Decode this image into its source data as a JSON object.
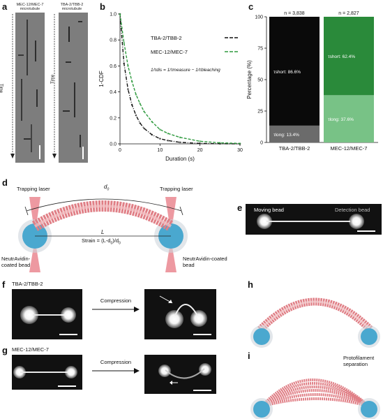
{
  "panels": {
    "a": {
      "label": "a",
      "kymo1_title": "MEC-12/MEC-7 microtubule",
      "kymo2_title": "TBA-2/TBB-2 microtubule",
      "time_label": "Time"
    },
    "b": {
      "label": "b"
    },
    "c": {
      "label": "c"
    },
    "d": {
      "label": "d",
      "trap_left": "Trapping laser",
      "trap_right": "Trapping laser",
      "d0": "d",
      "d0_sub": "0",
      "L": "L",
      "strain": "Strain = (L-d",
      "strain_sub": "0",
      "strain_tail": ")/d",
      "strain_sub2": "0",
      "bead_left": "NeutrAvidin-coated bead",
      "bead_right": "NeutrAvidin-coated bead",
      "colors": {
        "bead": "#4aa8cf",
        "lattice": "#e07f86",
        "laser": "#e8808a"
      }
    },
    "e": {
      "label": "e",
      "moving": "Moving bead",
      "detection": "Detection bead"
    },
    "f": {
      "label": "f",
      "title": "TBA-2/TBB-2",
      "arrow": "Compression"
    },
    "g": {
      "label": "g",
      "title": "MEC-12/MEC-7",
      "arrow": "Compression"
    },
    "h": {
      "label": "h"
    },
    "i": {
      "label": "i",
      "note": "Protofilament separation"
    }
  },
  "chart_data": [
    {
      "id": "b",
      "type": "line",
      "xlabel": "Duration (s)",
      "ylabel": "1-CDF",
      "xlim": [
        0,
        30
      ],
      "ylim": [
        0,
        1.0
      ],
      "xticks": [
        0,
        10,
        20,
        30
      ],
      "yticks": [
        0,
        0.2,
        0.4,
        0.6,
        0.8,
        1.0
      ],
      "equation": "1/τdis = 1/τmeasure − 1/τbleaching",
      "series": [
        {
          "name": "TBA-2/TBB-2",
          "color": "#111111",
          "x": [
            0,
            1,
            2,
            3,
            4,
            5,
            6,
            8,
            10,
            12,
            15,
            20,
            25,
            30
          ],
          "y": [
            1.0,
            0.62,
            0.42,
            0.3,
            0.22,
            0.16,
            0.12,
            0.07,
            0.04,
            0.025,
            0.012,
            0.004,
            0.001,
            0.0
          ]
        },
        {
          "name": "MEC-12/MEC-7",
          "color": "#2e9a3e",
          "x": [
            0,
            1,
            2,
            3,
            4,
            5,
            6,
            8,
            10,
            12,
            15,
            20,
            25,
            30
          ],
          "y": [
            1.0,
            0.78,
            0.6,
            0.48,
            0.38,
            0.31,
            0.25,
            0.17,
            0.11,
            0.08,
            0.05,
            0.02,
            0.008,
            0.003
          ]
        }
      ]
    },
    {
      "id": "c",
      "type": "bar",
      "stacked": true,
      "ylabel": "Percentage (%)",
      "ylim": [
        0,
        100
      ],
      "yticks": [
        0,
        25,
        50,
        75,
        100
      ],
      "categories": [
        "TBA-2/TBB-2",
        "MEC-12/MEC-7"
      ],
      "n_labels": [
        "n = 3,838",
        "n = 2,827"
      ],
      "series": [
        {
          "name": "τlong",
          "values": [
            13.4,
            37.6
          ],
          "colors": [
            "#6b6b6b",
            "#78c286"
          ],
          "labels": [
            "τlong: 13.4%",
            "τlong: 37.6%"
          ]
        },
        {
          "name": "τshort",
          "values": [
            86.6,
            62.4
          ],
          "colors": [
            "#0a0a0a",
            "#2a8a3a"
          ],
          "labels": [
            "τshort: 86.6%",
            "τshort: 62.4%"
          ]
        }
      ]
    }
  ]
}
